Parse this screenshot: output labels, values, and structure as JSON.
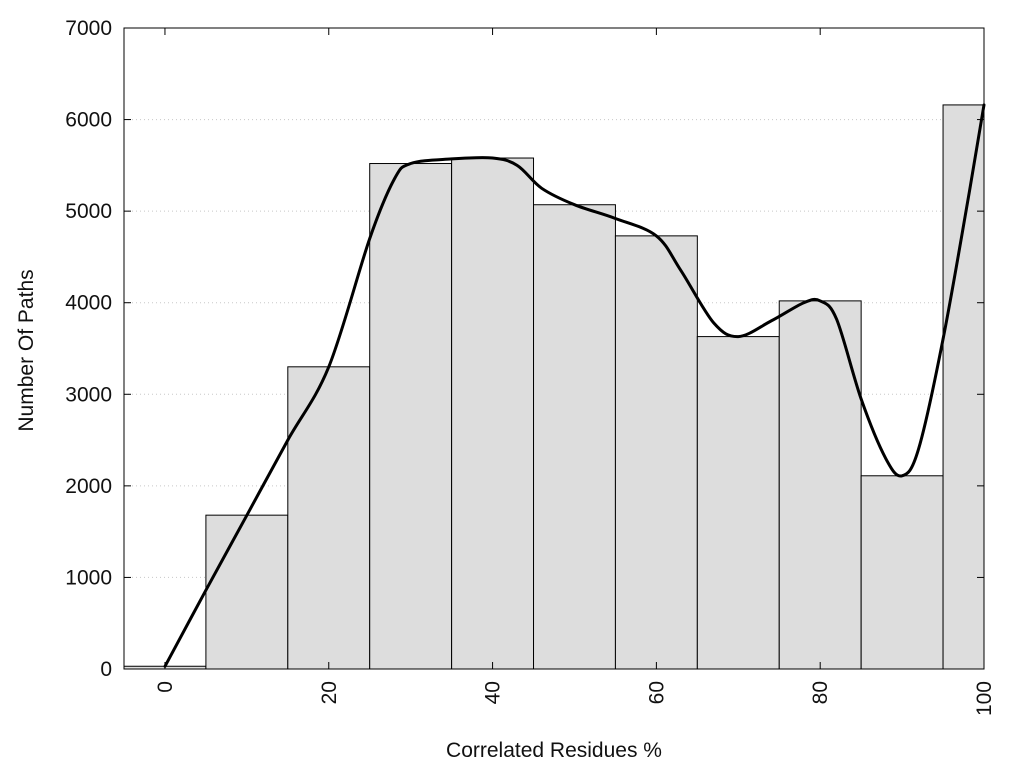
{
  "chart_data": {
    "type": "bar",
    "xlabel": "Correlated Residues %",
    "ylabel": "Number Of Paths",
    "ylim": [
      0,
      7000
    ],
    "xlim": [
      -5,
      100
    ],
    "yticks": [
      0,
      1000,
      2000,
      3000,
      4000,
      5000,
      6000,
      7000
    ],
    "xticks": [
      0,
      20,
      40,
      60,
      80,
      100
    ],
    "grid": true,
    "bar_width": 10,
    "bars": [
      {
        "x": 0,
        "value": 30
      },
      {
        "x": 10,
        "value": 1680
      },
      {
        "x": 20,
        "value": 3300
      },
      {
        "x": 30,
        "value": 5520
      },
      {
        "x": 40,
        "value": 5580
      },
      {
        "x": 50,
        "value": 5070
      },
      {
        "x": 60,
        "value": 4730
      },
      {
        "x": 70,
        "value": 3630
      },
      {
        "x": 80,
        "value": 4020
      },
      {
        "x": 90,
        "value": 2110
      },
      {
        "x": 100,
        "value": 6160
      }
    ],
    "smoothed_curve": {
      "x": [
        0,
        5,
        10,
        15,
        20,
        25,
        28,
        30,
        35,
        40,
        43,
        46,
        50,
        55,
        60,
        63,
        67,
        70,
        74,
        78,
        80,
        82,
        85,
        88,
        90,
        92,
        95,
        98,
        100
      ],
      "y": [
        30,
        860,
        1680,
        2500,
        3300,
        4700,
        5350,
        5520,
        5570,
        5580,
        5500,
        5250,
        5070,
        4920,
        4730,
        4350,
        3780,
        3630,
        3800,
        4000,
        4020,
        3820,
        2950,
        2300,
        2110,
        2400,
        3600,
        5100,
        6160
      ]
    },
    "colors": {
      "bar_fill": "#dddddd",
      "bar_stroke": "#000000",
      "curve": "#000000"
    }
  }
}
